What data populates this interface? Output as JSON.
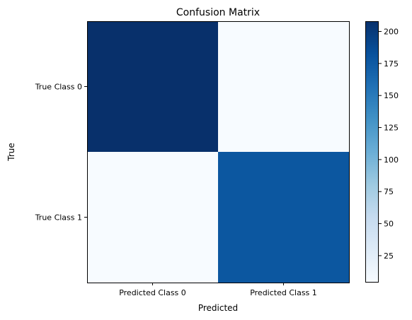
{
  "chart_data": {
    "type": "heatmap",
    "title": "Confusion Matrix",
    "xlabel": "Predicted",
    "ylabel": "True",
    "x_categories": [
      "Predicted Class 0",
      "Predicted Class 1"
    ],
    "y_categories": [
      "True Class 0",
      "True Class 1"
    ],
    "values": [
      [
        208,
        4
      ],
      [
        4,
        178
      ]
    ],
    "colormap": "Blues",
    "color_range": [
      4,
      208
    ],
    "colorbar_ticks": [
      25,
      50,
      75,
      100,
      125,
      150,
      175,
      200
    ],
    "grid": false,
    "colorbar_position": "right"
  }
}
